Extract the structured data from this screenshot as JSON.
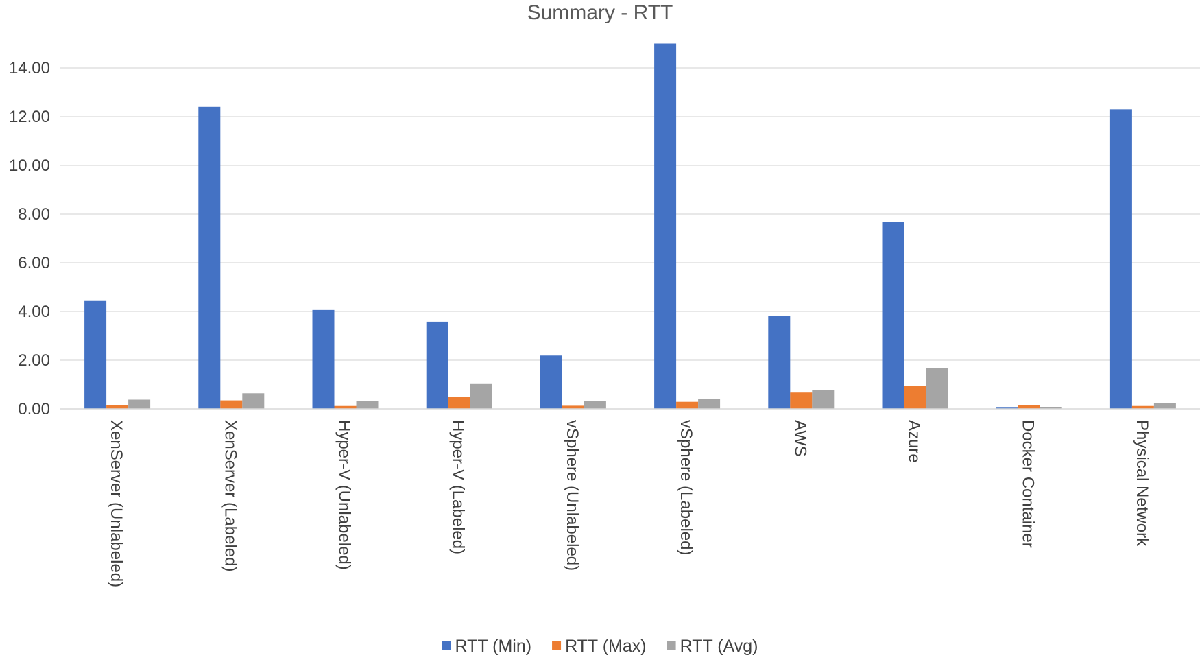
{
  "chart_data": {
    "type": "bar",
    "title": "Summary - RTT",
    "xlabel": "",
    "ylabel": "",
    "ylim": [
      0,
      14
    ],
    "yticks": [
      0,
      2,
      4,
      6,
      8,
      10,
      12,
      14
    ],
    "ytick_labels": [
      "0.00",
      "2.00",
      "4.00",
      "6.00",
      "8.00",
      "10.00",
      "12.00",
      "14.00"
    ],
    "grid": true,
    "legend_position": "bottom",
    "categories": [
      "XenServer (Unlabeled)",
      "XenServer (Labeled)",
      "Hyper-V (Unlabeled)",
      "Hyper-V (Labeled)",
      "vSphere (Unlabeled)",
      "vSphere (Labeled)",
      "AWS",
      "Azure",
      "Docker Container",
      "Physical Network"
    ],
    "series": [
      {
        "name": "RTT (Min)",
        "color": "#4472C4",
        "values": [
          4.43,
          12.4,
          4.06,
          3.58,
          2.19,
          15.0,
          3.81,
          7.68,
          0.05,
          12.3
        ]
      },
      {
        "name": "RTT (Max)",
        "color": "#ED7D31",
        "values": [
          0.16,
          0.35,
          0.12,
          0.49,
          0.13,
          0.29,
          0.67,
          0.93,
          0.16,
          0.12
        ]
      },
      {
        "name": "RTT (Avg)",
        "color": "#A5A5A5",
        "values": [
          0.38,
          0.64,
          0.32,
          1.02,
          0.31,
          0.41,
          0.78,
          1.69,
          0.06,
          0.23
        ]
      }
    ]
  }
}
